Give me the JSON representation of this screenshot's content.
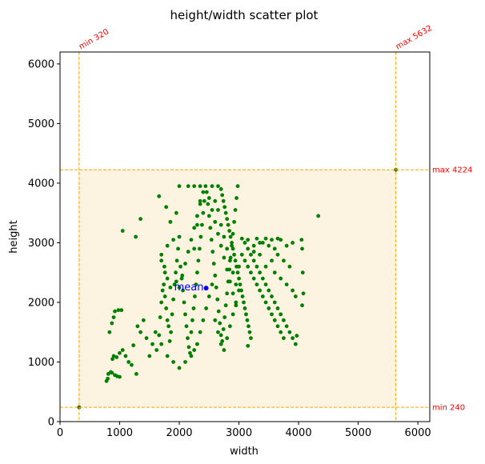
{
  "chart_data": {
    "type": "scatter",
    "title": "height/width scatter plot",
    "xlabel": "width",
    "ylabel": "height",
    "xlim": [
      0,
      6200
    ],
    "ylim": [
      0,
      6200
    ],
    "xticks": [
      0,
      1000,
      2000,
      3000,
      4000,
      5000,
      6000
    ],
    "yticks": [
      0,
      1000,
      2000,
      3000,
      4000,
      5000,
      6000
    ],
    "grid": false,
    "colors": {
      "points": "#008000",
      "mean": "#0000ff",
      "bounds": "#ffa500",
      "region": "#fdf3e1",
      "annotations": "#ff0000"
    },
    "bounds": {
      "min_width": 320,
      "max_width": 5632,
      "min_height": 240,
      "max_height": 4224,
      "min_width_label": "min 320",
      "max_width_label": "max 5632",
      "min_height_label": "min 240",
      "max_height_label": "max 4224"
    },
    "mean": {
      "x": 2450,
      "y": 2240,
      "label": "mean"
    },
    "points": [
      [
        320,
        240
      ],
      [
        5632,
        4224
      ],
      [
        4330,
        3450
      ],
      [
        780,
        680
      ],
      [
        800,
        720
      ],
      [
        810,
        800
      ],
      [
        850,
        830
      ],
      [
        870,
        820
      ],
      [
        920,
        780
      ],
      [
        960,
        760
      ],
      [
        1000,
        750
      ],
      [
        880,
        1050
      ],
      [
        900,
        1100
      ],
      [
        950,
        1080
      ],
      [
        1000,
        1150
      ],
      [
        1050,
        1200
      ],
      [
        1100,
        1100
      ],
      [
        1150,
        1000
      ],
      [
        1200,
        950
      ],
      [
        1280,
        800
      ],
      [
        830,
        1500
      ],
      [
        870,
        1650
      ],
      [
        900,
        1750
      ],
      [
        920,
        1850
      ],
      [
        980,
        1870
      ],
      [
        1030,
        1870
      ],
      [
        1050,
        3200
      ],
      [
        1270,
        3100
      ],
      [
        1350,
        3400
      ],
      [
        1230,
        1280
      ],
      [
        1300,
        1600
      ],
      [
        1350,
        1500
      ],
      [
        1400,
        1700
      ],
      [
        1450,
        1400
      ],
      [
        1500,
        1100
      ],
      [
        1550,
        1300
      ],
      [
        1600,
        1500
      ],
      [
        1620,
        1200
      ],
      [
        1660,
        1450
      ],
      [
        1680,
        1750
      ],
      [
        1700,
        2000
      ],
      [
        1720,
        2200
      ],
      [
        1740,
        2300
      ],
      [
        1760,
        2100
      ],
      [
        1780,
        1900
      ],
      [
        1800,
        1700
      ],
      [
        1820,
        1600
      ],
      [
        1840,
        1350
      ],
      [
        1860,
        1500
      ],
      [
        1880,
        1800
      ],
      [
        1900,
        2050
      ],
      [
        1920,
        2300
      ],
      [
        1940,
        2500
      ],
      [
        1960,
        2700
      ],
      [
        1980,
        2900
      ],
      [
        2000,
        3100
      ],
      [
        2000,
        3950
      ],
      [
        1780,
        3600
      ],
      [
        1660,
        3780
      ],
      [
        1700,
        2700
      ],
      [
        1760,
        2500
      ],
      [
        1800,
        2950
      ],
      [
        1850,
        3350
      ],
      [
        1900,
        3050
      ],
      [
        1950,
        3500
      ],
      [
        2020,
        2600
      ],
      [
        2040,
        2400
      ],
      [
        2060,
        2200
      ],
      [
        2080,
        2000
      ],
      [
        2100,
        1800
      ],
      [
        2120,
        1600
      ],
      [
        2140,
        1400
      ],
      [
        2160,
        1250
      ],
      [
        2180,
        1150
      ],
      [
        2200,
        1500
      ],
      [
        2220,
        1700
      ],
      [
        2240,
        1900
      ],
      [
        2260,
        2100
      ],
      [
        2280,
        2300
      ],
      [
        2300,
        2500
      ],
      [
        2320,
        2700
      ],
      [
        2340,
        2900
      ],
      [
        2360,
        3100
      ],
      [
        2380,
        3300
      ],
      [
        2400,
        3500
      ],
      [
        2420,
        3700
      ],
      [
        2440,
        3950
      ],
      [
        2460,
        3850
      ],
      [
        2480,
        3650
      ],
      [
        2500,
        3450
      ],
      [
        2520,
        3250
      ],
      [
        2540,
        3050
      ],
      [
        2560,
        2850
      ],
      [
        2580,
        2650
      ],
      [
        2600,
        2450
      ],
      [
        2620,
        2250
      ],
      [
        2640,
        2050
      ],
      [
        2660,
        1850
      ],
      [
        2680,
        1650
      ],
      [
        2700,
        1450
      ],
      [
        2720,
        1350
      ],
      [
        2740,
        1550
      ],
      [
        2760,
        1750
      ],
      [
        2780,
        1950
      ],
      [
        2800,
        2150
      ],
      [
        2820,
        2350
      ],
      [
        2840,
        2550
      ],
      [
        2860,
        2750
      ],
      [
        2880,
        2950
      ],
      [
        2900,
        3150
      ],
      [
        2920,
        3350
      ],
      [
        2940,
        3550
      ],
      [
        2960,
        3750
      ],
      [
        2980,
        3950
      ],
      [
        2700,
        3900
      ],
      [
        2720,
        3800
      ],
      [
        2740,
        3700
      ],
      [
        2760,
        3600
      ],
      [
        2780,
        3500
      ],
      [
        2800,
        3400
      ],
      [
        2820,
        3300
      ],
      [
        2840,
        3200
      ],
      [
        2860,
        3100
      ],
      [
        2880,
        3000
      ],
      [
        2900,
        2900
      ],
      [
        2920,
        2800
      ],
      [
        2940,
        2700
      ],
      [
        2960,
        2600
      ],
      [
        2980,
        2500
      ],
      [
        3000,
        2400
      ],
      [
        3020,
        2300
      ],
      [
        3040,
        2200
      ],
      [
        3060,
        2100
      ],
      [
        3080,
        2000
      ],
      [
        3100,
        1900
      ],
      [
        3120,
        1800
      ],
      [
        3140,
        1700
      ],
      [
        3160,
        1600
      ],
      [
        3180,
        1500
      ],
      [
        3200,
        1400
      ],
      [
        3150,
        1270
      ],
      [
        3050,
        3070
      ],
      [
        3100,
        3000
      ],
      [
        3150,
        2900
      ],
      [
        3200,
        2800
      ],
      [
        3250,
        2700
      ],
      [
        3300,
        2600
      ],
      [
        3350,
        2500
      ],
      [
        3400,
        2400
      ],
      [
        3450,
        2300
      ],
      [
        3500,
        2200
      ],
      [
        3550,
        2100
      ],
      [
        3600,
        2000
      ],
      [
        3650,
        1900
      ],
      [
        3700,
        1800
      ],
      [
        3750,
        1700
      ],
      [
        3800,
        1600
      ],
      [
        3850,
        1500
      ],
      [
        3900,
        1400
      ],
      [
        3950,
        1300
      ],
      [
        3970,
        1440
      ],
      [
        3300,
        3070
      ],
      [
        3400,
        3000
      ],
      [
        3500,
        2950
      ],
      [
        3600,
        2900
      ],
      [
        3700,
        3050
      ],
      [
        3800,
        2950
      ],
      [
        3900,
        3000
      ],
      [
        4050,
        3050
      ],
      [
        4060,
        2900
      ],
      [
        4070,
        2500
      ],
      [
        4080,
        2150
      ],
      [
        4060,
        1950
      ],
      [
        3650,
        3070
      ],
      [
        3550,
        3050
      ],
      [
        3450,
        3070
      ],
      [
        3350,
        3000
      ],
      [
        3250,
        2950
      ],
      [
        3150,
        3050
      ],
      [
        2250,
        2900
      ],
      [
        2300,
        3300
      ],
      [
        2350,
        3700
      ],
      [
        2150,
        3950
      ],
      [
        2250,
        3950
      ],
      [
        2350,
        3950
      ],
      [
        2550,
        3950
      ],
      [
        2650,
        3950
      ],
      [
        2600,
        3700
      ],
      [
        2650,
        3550
      ],
      [
        2700,
        3300
      ],
      [
        2750,
        3100
      ],
      [
        2800,
        2900
      ],
      [
        2850,
        2700
      ],
      [
        2900,
        2500
      ],
      [
        2950,
        2300
      ],
      [
        3000,
        2200
      ],
      [
        2550,
        2300
      ],
      [
        2500,
        2100
      ],
      [
        2450,
        1900
      ],
      [
        2400,
        1700
      ],
      [
        2350,
        1500
      ],
      [
        2300,
        1300
      ],
      [
        2250,
        1200
      ],
      [
        2200,
        1100
      ],
      [
        2100,
        1000
      ],
      [
        2000,
        900
      ],
      [
        1900,
        1000
      ],
      [
        1800,
        1100
      ],
      [
        1700,
        1300
      ],
      [
        2600,
        1700
      ],
      [
        2650,
        1500
      ],
      [
        2700,
        1300
      ],
      [
        2750,
        1200
      ],
      [
        2800,
        1400
      ],
      [
        2850,
        1600
      ],
      [
        2900,
        1800
      ],
      [
        2950,
        2000
      ],
      [
        3000,
        2600
      ],
      [
        3050,
        2800
      ],
      [
        3100,
        2700
      ],
      [
        3150,
        2600
      ],
      [
        3200,
        2500
      ],
      [
        3250,
        2400
      ],
      [
        3300,
        2300
      ],
      [
        3350,
        2200
      ],
      [
        3400,
        2100
      ],
      [
        3450,
        2000
      ],
      [
        3500,
        1900
      ],
      [
        3550,
        1800
      ],
      [
        3600,
        1700
      ],
      [
        3650,
        1600
      ],
      [
        3700,
        1500
      ],
      [
        3750,
        1400
      ],
      [
        3600,
        2500
      ],
      [
        3700,
        2400
      ],
      [
        3800,
        2300
      ],
      [
        3900,
        2200
      ],
      [
        3950,
        2100
      ],
      [
        3850,
        2600
      ],
      [
        3750,
        2700
      ],
      [
        3650,
        2800
      ],
      [
        3550,
        2700
      ],
      [
        3450,
        2600
      ],
      [
        3350,
        2800
      ],
      [
        3250,
        2850
      ],
      [
        1950,
        2350
      ],
      [
        2000,
        2250
      ],
      [
        2050,
        2450
      ],
      [
        2100,
        2650
      ],
      [
        2150,
        2850
      ],
      [
        2200,
        3050
      ],
      [
        2250,
        3250
      ],
      [
        2300,
        3450
      ],
      [
        2350,
        3650
      ],
      [
        2400,
        3850
      ],
      [
        2500,
        3750
      ],
      [
        2550,
        3550
      ],
      [
        2600,
        3350
      ],
      [
        2650,
        3150
      ],
      [
        2700,
        2950
      ],
      [
        2750,
        2750
      ],
      [
        2800,
        2550
      ],
      [
        2850,
        2350
      ],
      [
        2900,
        2150
      ],
      [
        2950,
        1950
      ],
      [
        1850,
        2250
      ],
      [
        1800,
        2400
      ],
      [
        1750,
        2600
      ],
      [
        1700,
        2800
      ]
    ]
  }
}
